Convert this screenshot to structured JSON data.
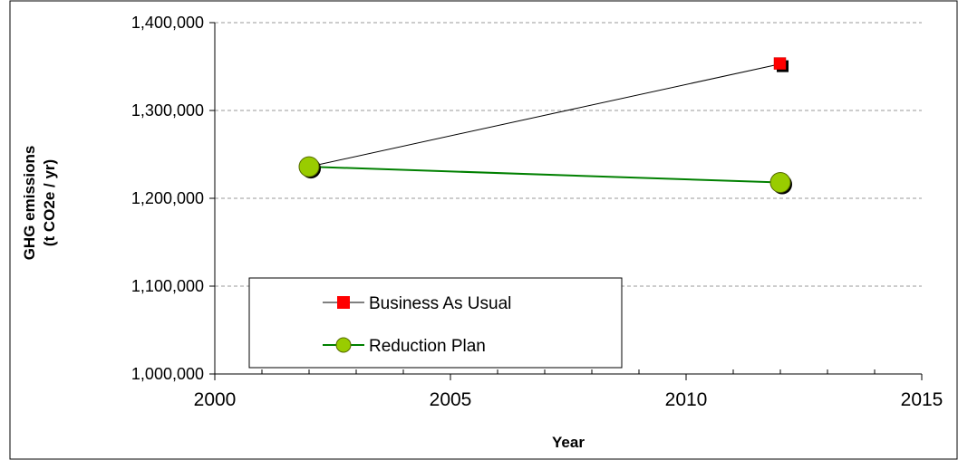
{
  "chart_data": {
    "type": "line",
    "title": "",
    "xlabel": "Year",
    "ylabel_lines": [
      "GHG emissions",
      "(t CO2e / yr)"
    ],
    "xlim": [
      2000,
      2015
    ],
    "ylim": [
      1000000,
      1400000
    ],
    "x_ticks": [
      2000,
      2005,
      2010,
      2015
    ],
    "y_ticks": [
      1000000,
      1100000,
      1200000,
      1300000,
      1400000
    ],
    "x_tick_labels": [
      "2000",
      "2005",
      "2010",
      "2015"
    ],
    "y_tick_labels": [
      "1,000,000",
      "1,100,000",
      "1,200,000",
      "1,300,000",
      "1,400,000"
    ],
    "grid": "horizontal dashed",
    "legend_position": "lower-left",
    "series": [
      {
        "name": "Business As Usual",
        "marker": "square",
        "line_color": "#000000",
        "marker_color": "#ff0000",
        "points": [
          [
            2002,
            1236000
          ],
          [
            2012,
            1353000
          ]
        ]
      },
      {
        "name": "Reduction Plan",
        "marker": "circle",
        "line_color": "#008000",
        "marker_color": "#99cc00",
        "points": [
          [
            2002,
            1236000
          ],
          [
            2012,
            1218000
          ]
        ]
      }
    ]
  }
}
